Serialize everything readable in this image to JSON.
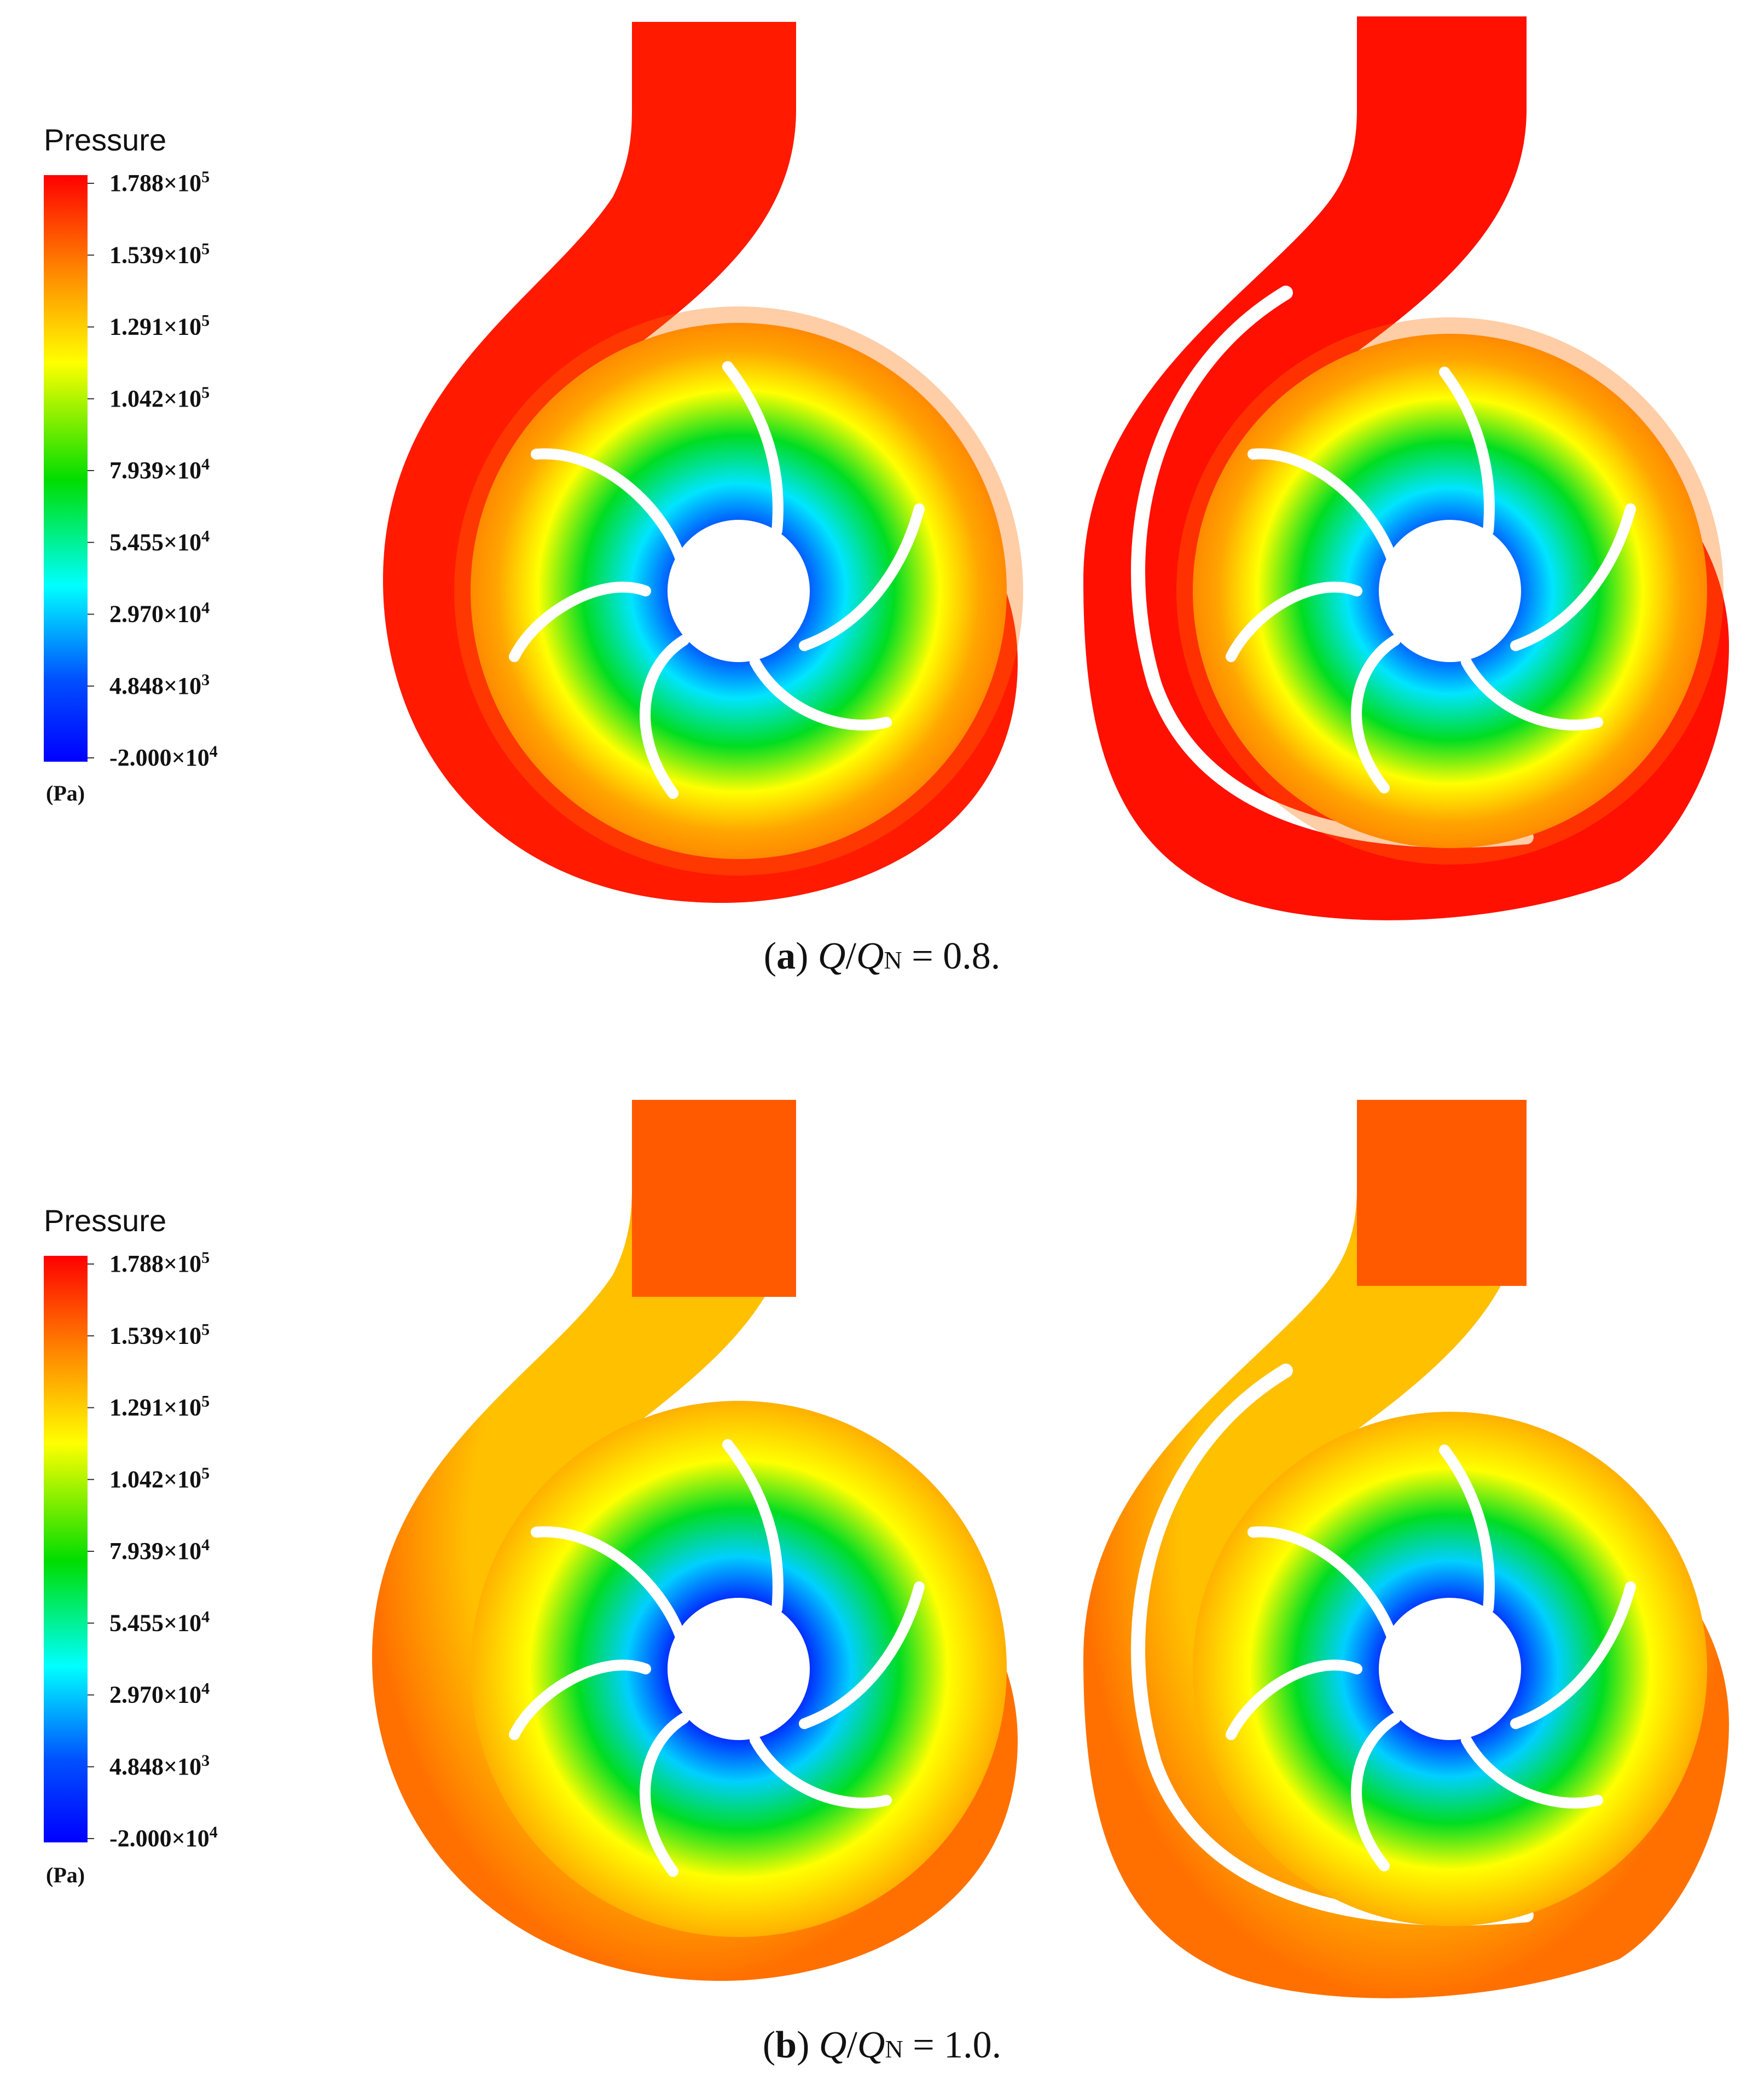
{
  "figure": {
    "panels": [
      {
        "caption": {
          "letter": "a",
          "open": "(",
          "close": ")",
          "q": "Q",
          "slash": "/",
          "qn": "Q",
          "sub": "N",
          "eq": " = ",
          "value": "0.8."
        },
        "legend": {
          "title": "Pressure",
          "unit": "(Pa)",
          "ticks": [
            {
              "mant": "1.788",
              "times": "×",
              "base": "10",
              "exp": "5"
            },
            {
              "mant": "1.539",
              "times": "×",
              "base": "10",
              "exp": "5"
            },
            {
              "mant": "1.291",
              "times": "×",
              "base": "10",
              "exp": "5"
            },
            {
              "mant": "1.042",
              "times": "×",
              "base": "10",
              "exp": "5"
            },
            {
              "mant": "7.939",
              "times": "×",
              "base": "10",
              "exp": "4"
            },
            {
              "mant": "5.455",
              "times": "×",
              "base": "10",
              "exp": "4"
            },
            {
              "mant": "2.970",
              "times": "×",
              "base": "10",
              "exp": "4"
            },
            {
              "mant": "4.848",
              "times": "×",
              "base": "10",
              "exp": "3"
            },
            {
              "mant": "-2.000",
              "times": "×",
              "base": "10",
              "exp": "4"
            }
          ]
        }
      },
      {
        "caption": {
          "letter": "b",
          "open": "(",
          "close": ")",
          "q": "Q",
          "slash": "/",
          "qn": "Q",
          "sub": "N",
          "eq": " = ",
          "value": "1.0."
        },
        "legend": {
          "title": "Pressure",
          "unit": "(Pa)",
          "ticks": [
            {
              "mant": "1.788",
              "times": "×",
              "base": "10",
              "exp": "5"
            },
            {
              "mant": "1.539",
              "times": "×",
              "base": "10",
              "exp": "5"
            },
            {
              "mant": "1.291",
              "times": "×",
              "base": "10",
              "exp": "5"
            },
            {
              "mant": "1.042",
              "times": "×",
              "base": "10",
              "exp": "5"
            },
            {
              "mant": "7.939",
              "times": "×",
              "base": "10",
              "exp": "4"
            },
            {
              "mant": "5.455",
              "times": "×",
              "base": "10",
              "exp": "4"
            },
            {
              "mant": "2.970",
              "times": "×",
              "base": "10",
              "exp": "4"
            },
            {
              "mant": "4.848",
              "times": "×",
              "base": "10",
              "exp": "3"
            },
            {
              "mant": "-2.000",
              "times": "×",
              "base": "10",
              "exp": "4"
            }
          ]
        }
      }
    ],
    "colors": {
      "scale": [
        "#ff0000",
        "#ff8c00",
        "#ffff00",
        "#00dd00",
        "#00ffff",
        "#0050ff",
        "#0000ff"
      ],
      "blade": "#ffffff",
      "text": "#111111"
    }
  }
}
